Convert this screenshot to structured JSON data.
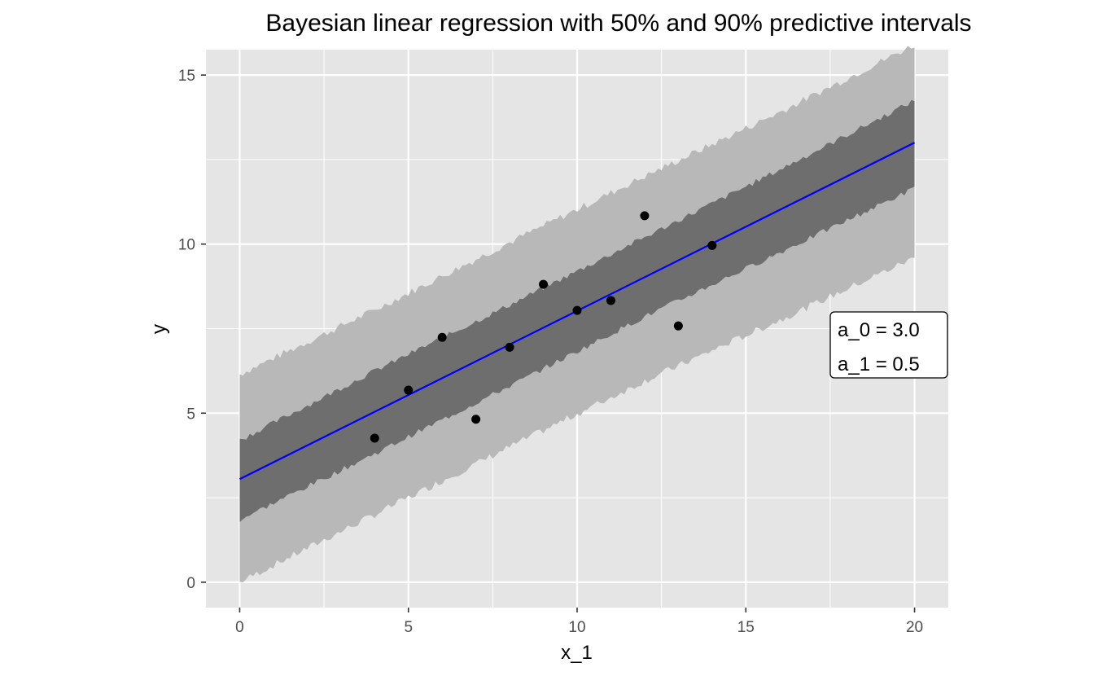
{
  "chart_data": {
    "type": "line",
    "title": "Bayesian linear regression with 50% and 90% predictive intervals",
    "xlabel": "x_1",
    "ylabel": "y",
    "xlim": [
      -1,
      21
    ],
    "ylim": [
      -0.75,
      15.75
    ],
    "x_ticks": [
      0,
      5,
      10,
      15,
      20
    ],
    "x_tick_labels": [
      "0",
      "5",
      "10",
      "15",
      "20"
    ],
    "y_ticks": [
      0,
      5,
      10,
      15
    ],
    "y_tick_labels": [
      "0",
      "5",
      "10",
      "15"
    ],
    "x_minor_ticks": [
      2.5,
      7.5,
      12.5,
      17.5
    ],
    "y_minor_ticks": [
      2.5,
      7.5,
      12.5
    ],
    "grid": true,
    "colors": {
      "panel": "#e5e5e5",
      "grid": "#ffffff",
      "band_90": "#b8b8b8",
      "band_50": "#6e6e6e",
      "fit_line": "#0000ff",
      "points": "#000000"
    },
    "fit_line": {
      "name": "posterior mean",
      "x": [
        0,
        20
      ],
      "y": [
        3.05,
        13.0
      ]
    },
    "interval_90": {
      "x": [
        0,
        4,
        8,
        12,
        16,
        20
      ],
      "lower": [
        0.0,
        2.0,
        4.0,
        5.95,
        7.75,
        9.6
      ],
      "upper": [
        6.15,
        8.05,
        10.05,
        12.0,
        13.9,
        15.9
      ]
    },
    "interval_50": {
      "x": [
        0,
        4,
        8,
        12,
        16,
        20
      ],
      "lower": [
        1.85,
        3.8,
        5.8,
        7.85,
        9.75,
        11.65
      ],
      "upper": [
        4.2,
        6.25,
        8.2,
        10.2,
        12.2,
        14.25
      ]
    },
    "points": {
      "name": "observations",
      "x": [
        4,
        5,
        6,
        7,
        8,
        9,
        10,
        11,
        12,
        13,
        14
      ],
      "y": [
        4.26,
        5.68,
        7.24,
        4.82,
        6.95,
        8.81,
        8.04,
        8.33,
        10.84,
        7.58,
        9.96
      ]
    },
    "annotation": {
      "lines": [
        "a_0 = 3.0",
        "a_1 = 0.5"
      ],
      "anchor_x": 18.5,
      "anchor_y": 7.0
    }
  }
}
